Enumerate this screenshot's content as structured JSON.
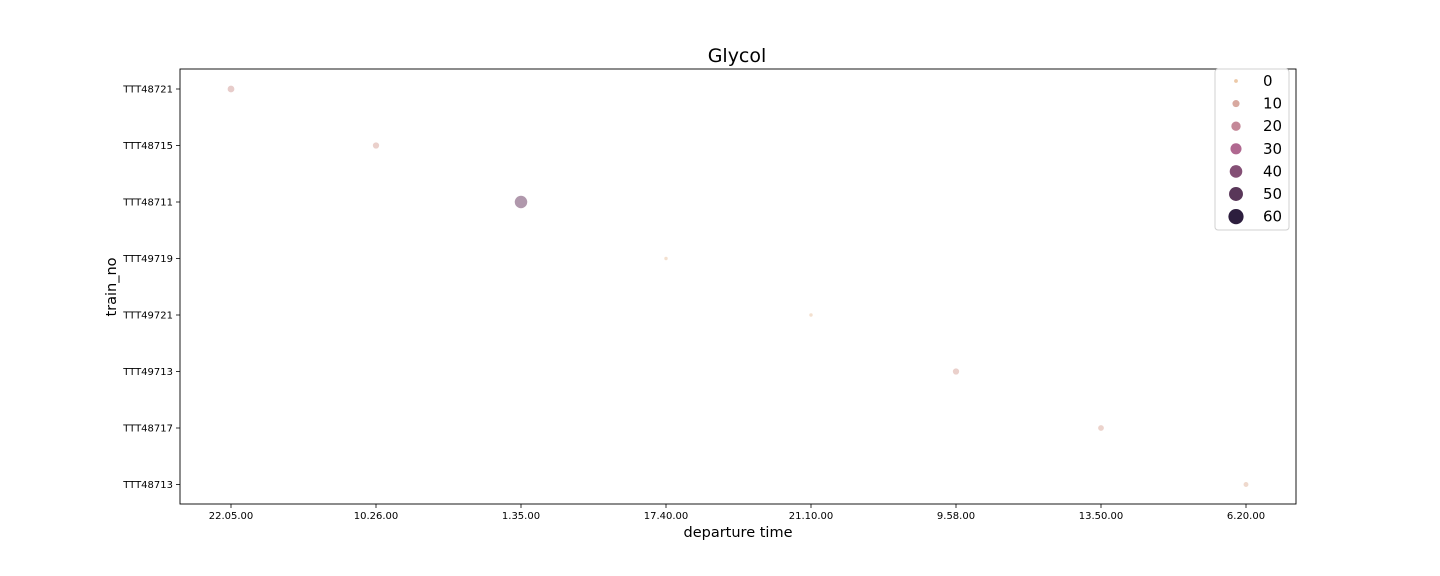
{
  "chart_data": {
    "type": "scatter",
    "title": "Glycol",
    "xlabel": "departure time",
    "ylabel": "train_no",
    "x_categories": [
      "22.05.00",
      "10.26.00",
      "1.35.00",
      "17.40.00",
      "21.10.00",
      "9.58.00",
      "13.50.00",
      "6.20.00"
    ],
    "y_categories": [
      "TTT48721",
      "TTT48715",
      "TTT48711",
      "TTT49719",
      "TTT49721",
      "TTT49713",
      "TTT48717",
      "TTT48713"
    ],
    "points": [
      {
        "x": "22.05.00",
        "y": "TTT48721",
        "value": 12
      },
      {
        "x": "10.26.00",
        "y": "TTT48715",
        "value": 10
      },
      {
        "x": "1.35.00",
        "y": "TTT48711",
        "value": 45
      },
      {
        "x": "17.40.00",
        "y": "TTT49719",
        "value": 1
      },
      {
        "x": "21.10.00",
        "y": "TTT49721",
        "value": 1
      },
      {
        "x": "9.58.00",
        "y": "TTT49713",
        "value": 10
      },
      {
        "x": "13.50.00",
        "y": "TTT48717",
        "value": 8
      },
      {
        "x": "6.20.00",
        "y": "TTT48713",
        "value": 5
      }
    ],
    "legend": {
      "position": "top-right",
      "entries": [
        0,
        10,
        20,
        30,
        40,
        50,
        60
      ]
    },
    "size_range": [
      0,
      60
    ],
    "grid": false,
    "colors": {
      "low": "#ecc9a8",
      "high": "#2d1e3e",
      "marker_alpha": 0.55
    }
  }
}
